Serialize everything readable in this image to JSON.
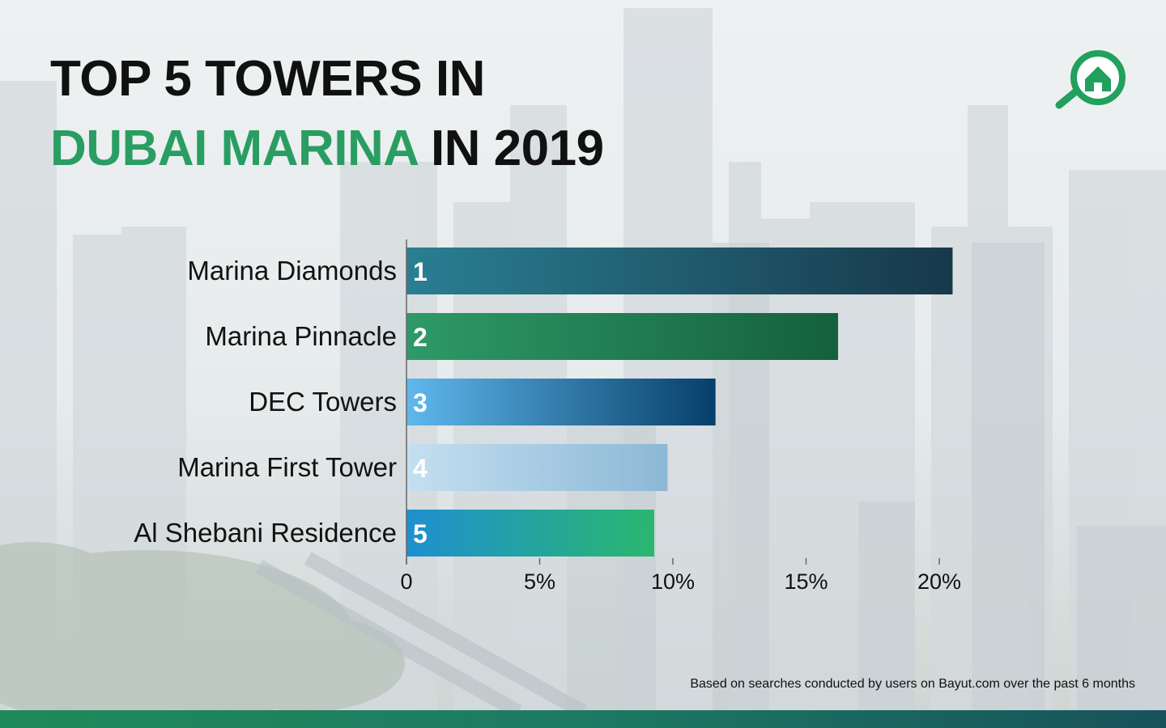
{
  "title": {
    "line1": "TOP 5 TOWERS IN",
    "line2_accent": "DUBAI MARINA",
    "line2_rest": " IN 2019"
  },
  "footnote": "Based on searches conducted by users on Bayut.com over the past 6 months",
  "logo": {
    "icon": "house-magnifier-icon",
    "color": "#21a05e"
  },
  "colors": {
    "accent": "#2a9d63",
    "title": "#111111"
  },
  "chart_data": {
    "type": "bar",
    "orientation": "horizontal",
    "categories": [
      "Marina Diamonds",
      "Marina Pinnacle",
      "DEC Towers",
      "Marina First Tower",
      "Al Shebani Residence"
    ],
    "values": [
      20.5,
      16.2,
      11.6,
      9.8,
      9.3
    ],
    "ranks": [
      "1",
      "2",
      "3",
      "4",
      "5"
    ],
    "xlim": [
      0,
      21
    ],
    "ticks": [
      0,
      5,
      10,
      15,
      20
    ],
    "tick_labels": [
      "0",
      "5%",
      "10%",
      "15%",
      "20%"
    ],
    "bar_colors": [
      [
        "#2a7f93",
        "#17384a"
      ],
      [
        "#2e9a67",
        "#15603d"
      ],
      [
        "#5fb8ec",
        "#073f6a"
      ],
      [
        "#c4dff0",
        "#8cb8d6"
      ],
      [
        "#1f8fd0",
        "#2ab76f"
      ]
    ],
    "grid": false
  }
}
